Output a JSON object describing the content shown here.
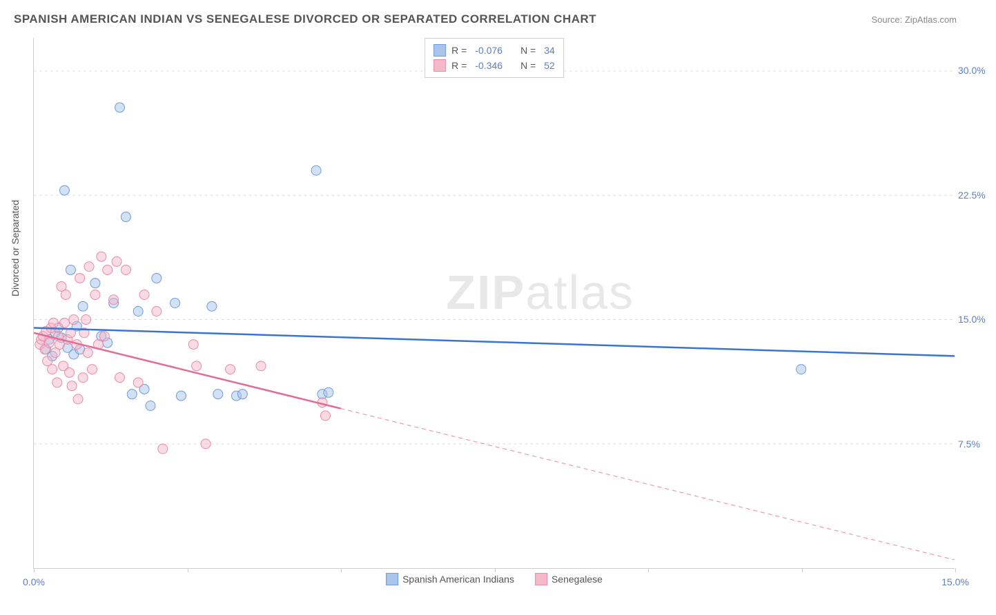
{
  "title": "SPANISH AMERICAN INDIAN VS SENEGALESE DIVORCED OR SEPARATED CORRELATION CHART",
  "source": "Source: ZipAtlas.com",
  "ylabel": "Divorced or Separated",
  "watermark_left": "ZIP",
  "watermark_right": "atlas",
  "chart": {
    "type": "scatter-with-trend",
    "background_color": "#ffffff",
    "grid_color": "#dddddd",
    "axis_color": "#cccccc",
    "text_color": "#555555",
    "highlight_color": "#5b7fc7",
    "xlim": [
      0,
      15
    ],
    "ylim": [
      0,
      32
    ],
    "xticks": [
      0,
      2.5,
      5,
      7.5,
      10,
      12.5,
      15
    ],
    "xtick_labels_shown": {
      "0": "0.0%",
      "15": "15.0%"
    },
    "yticks": [
      7.5,
      15,
      22.5,
      30
    ],
    "ytick_labels": [
      "7.5%",
      "15.0%",
      "22.5%",
      "30.0%"
    ],
    "marker_radius": 7,
    "marker_opacity": 0.5,
    "series": [
      {
        "key": "spanish_american_indians",
        "label": "Spanish American Indians",
        "color_fill": "#a7c4ec",
        "color_stroke": "#6f9bd8",
        "trend_color": "#3a74d0",
        "trend_width": 2.5,
        "R": "-0.076",
        "N": "34",
        "trend": {
          "y_at_x0": 14.5,
          "y_at_x15": 12.8,
          "solid_until_x": 15
        },
        "points": [
          [
            0.2,
            13.2
          ],
          [
            0.25,
            13.8
          ],
          [
            0.3,
            12.8
          ],
          [
            0.35,
            14.2
          ],
          [
            0.4,
            14.5
          ],
          [
            0.45,
            13.9
          ],
          [
            0.5,
            22.8
          ],
          [
            0.55,
            13.3
          ],
          [
            0.6,
            18.0
          ],
          [
            0.65,
            12.9
          ],
          [
            0.7,
            14.6
          ],
          [
            0.75,
            13.2
          ],
          [
            0.8,
            15.8
          ],
          [
            1.0,
            17.2
          ],
          [
            1.1,
            14.0
          ],
          [
            1.2,
            13.6
          ],
          [
            1.3,
            16.0
          ],
          [
            1.4,
            27.8
          ],
          [
            1.5,
            21.2
          ],
          [
            1.6,
            10.5
          ],
          [
            1.7,
            15.5
          ],
          [
            1.8,
            10.8
          ],
          [
            1.9,
            9.8
          ],
          [
            2.0,
            17.5
          ],
          [
            2.3,
            16.0
          ],
          [
            2.4,
            10.4
          ],
          [
            2.9,
            15.8
          ],
          [
            3.0,
            10.5
          ],
          [
            3.3,
            10.4
          ],
          [
            3.4,
            10.5
          ],
          [
            4.6,
            24.0
          ],
          [
            4.7,
            10.5
          ],
          [
            4.8,
            10.6
          ],
          [
            12.5,
            12.0
          ]
        ]
      },
      {
        "key": "senegalese",
        "label": "Senegalese",
        "color_fill": "#f4b8c8",
        "color_stroke": "#e88ba8",
        "trend_color": "#e36c96",
        "trend_width": 2.5,
        "R": "-0.346",
        "N": "52",
        "trend": {
          "y_at_x0": 14.2,
          "y_at_x15": 0.5,
          "solid_until_x": 5
        },
        "points": [
          [
            0.1,
            13.5
          ],
          [
            0.12,
            13.8
          ],
          [
            0.15,
            14.0
          ],
          [
            0.18,
            13.2
          ],
          [
            0.2,
            14.3
          ],
          [
            0.22,
            12.5
          ],
          [
            0.25,
            13.6
          ],
          [
            0.28,
            14.5
          ],
          [
            0.3,
            12.0
          ],
          [
            0.32,
            14.8
          ],
          [
            0.35,
            13.0
          ],
          [
            0.38,
            11.2
          ],
          [
            0.4,
            14.0
          ],
          [
            0.42,
            13.5
          ],
          [
            0.45,
            17.0
          ],
          [
            0.48,
            12.2
          ],
          [
            0.5,
            14.8
          ],
          [
            0.52,
            16.5
          ],
          [
            0.55,
            13.8
          ],
          [
            0.58,
            11.8
          ],
          [
            0.6,
            14.2
          ],
          [
            0.62,
            11.0
          ],
          [
            0.65,
            15.0
          ],
          [
            0.7,
            13.5
          ],
          [
            0.72,
            10.2
          ],
          [
            0.75,
            17.5
          ],
          [
            0.8,
            11.5
          ],
          [
            0.82,
            14.2
          ],
          [
            0.85,
            15.0
          ],
          [
            0.88,
            13.0
          ],
          [
            0.9,
            18.2
          ],
          [
            0.95,
            12.0
          ],
          [
            1.0,
            16.5
          ],
          [
            1.05,
            13.5
          ],
          [
            1.1,
            18.8
          ],
          [
            1.15,
            14.0
          ],
          [
            1.2,
            18.0
          ],
          [
            1.3,
            16.2
          ],
          [
            1.35,
            18.5
          ],
          [
            1.4,
            11.5
          ],
          [
            1.5,
            18.0
          ],
          [
            1.7,
            11.2
          ],
          [
            1.8,
            16.5
          ],
          [
            2.0,
            15.5
          ],
          [
            2.1,
            7.2
          ],
          [
            2.6,
            13.5
          ],
          [
            2.65,
            12.2
          ],
          [
            2.8,
            7.5
          ],
          [
            3.2,
            12.0
          ],
          [
            3.7,
            12.2
          ],
          [
            4.7,
            10.0
          ],
          [
            4.75,
            9.2
          ]
        ]
      }
    ]
  }
}
